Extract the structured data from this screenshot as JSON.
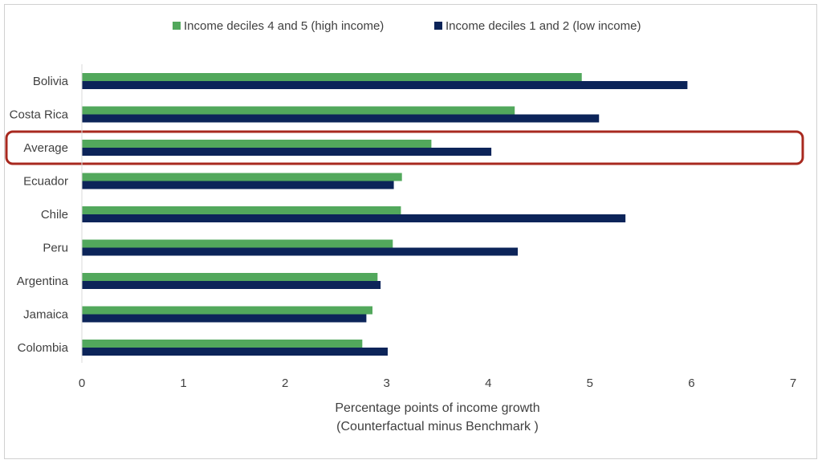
{
  "chart_data": {
    "type": "bar",
    "orientation": "horizontal",
    "categories": [
      "Bolivia",
      "Costa Rica",
      "Average",
      "Ecuador",
      "Chile",
      "Peru",
      "Argentina",
      "Jamaica",
      "Colombia"
    ],
    "series": [
      {
        "name": "Income deciles 4 and 5 (high income)",
        "color": "#52a85c",
        "values": [
          4.92,
          4.26,
          3.44,
          3.15,
          3.14,
          3.06,
          2.91,
          2.86,
          2.76
        ]
      },
      {
        "name": "Income deciles 1 and 2 (low income)",
        "color": "#0c2459",
        "values": [
          5.96,
          5.09,
          4.03,
          3.07,
          5.35,
          4.29,
          2.94,
          2.8,
          3.01
        ]
      }
    ],
    "xlabel": "Percentage points of income growth",
    "xlabel2": "(Counterfactual minus Benchmark )",
    "ylabel": "",
    "xlim": [
      0,
      7
    ],
    "xticks": [
      "0",
      "1",
      "2",
      "3",
      "4",
      "5",
      "6",
      "7"
    ],
    "grid": false,
    "legend_position": "top",
    "highlighted_category": "Average",
    "highlight_color": "#a8291f"
  }
}
